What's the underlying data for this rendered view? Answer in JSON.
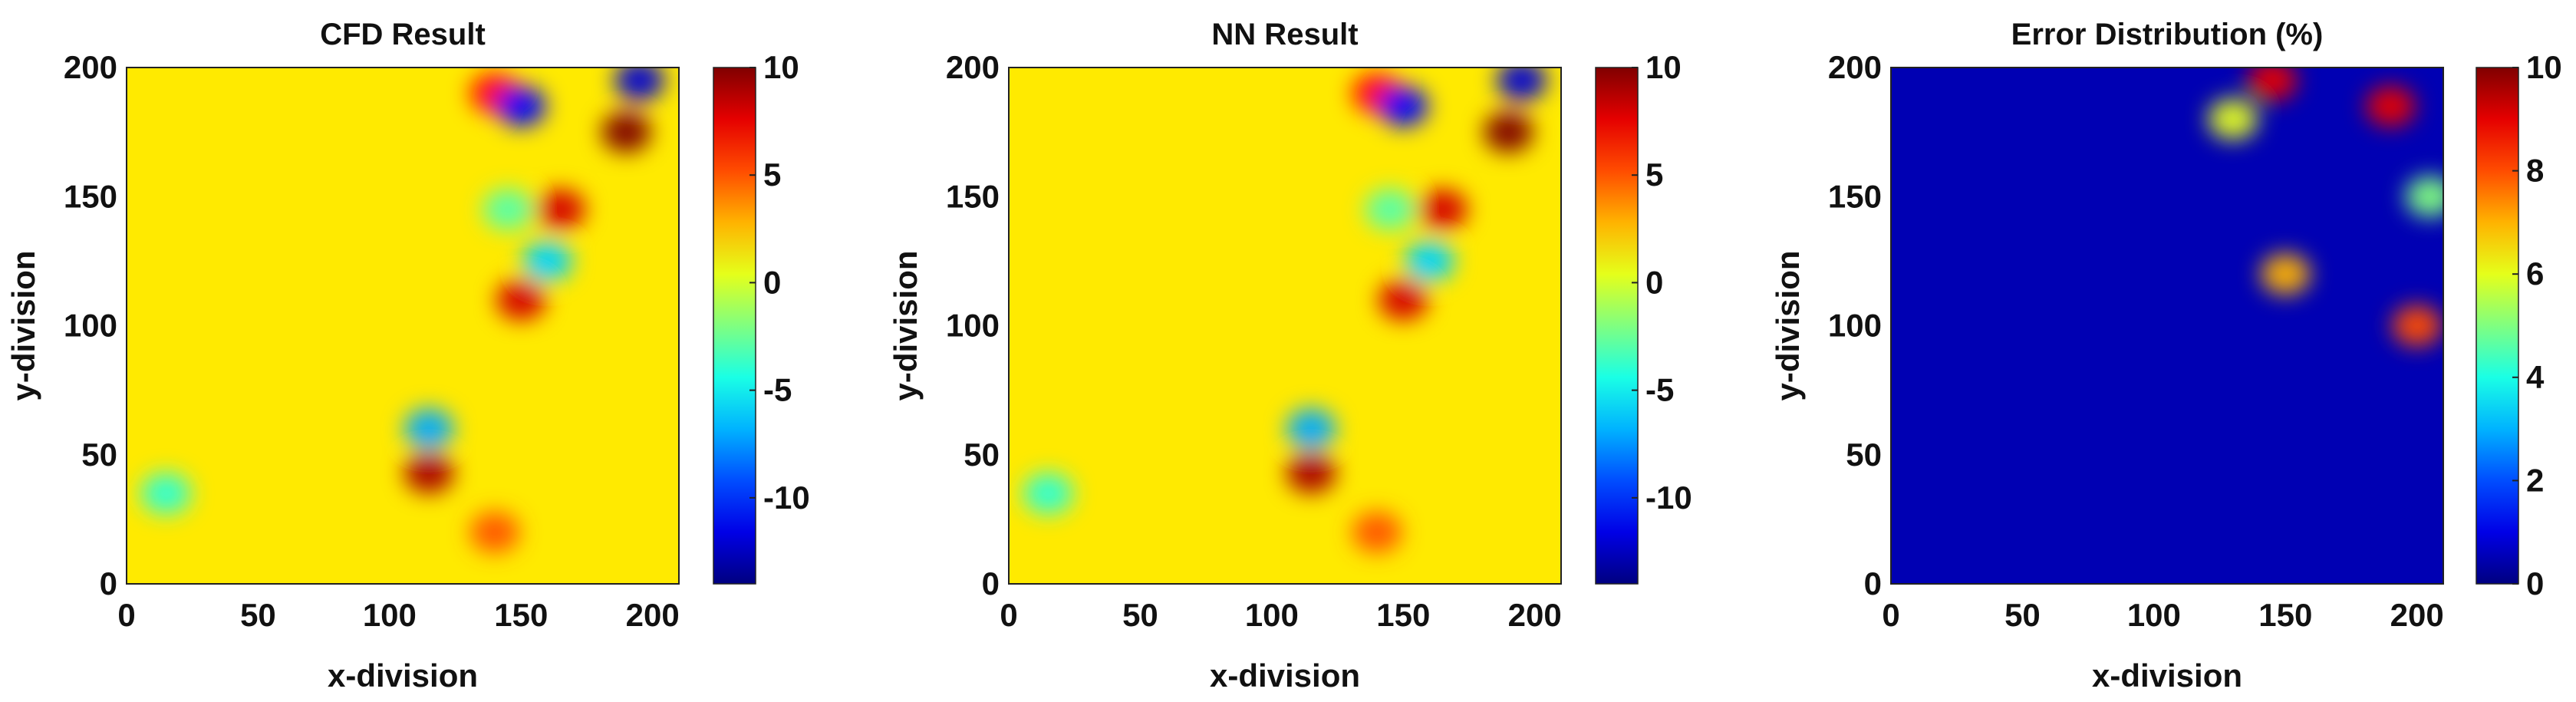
{
  "chart_data": [
    {
      "type": "heatmap",
      "title": "CFD Result",
      "xlabel": "x-division",
      "ylabel": "y-division",
      "xlim": [
        0,
        210
      ],
      "ylim": [
        0,
        200
      ],
      "x_ticks": [
        "0",
        "50",
        "100",
        "150",
        "200"
      ],
      "y_ticks": [
        "0",
        "50",
        "100",
        "150",
        "200"
      ],
      "colorbar": {
        "min": -14,
        "max": 10,
        "ticks": [
          "10",
          "5",
          "0",
          "-5",
          "-10"
        ],
        "colormap": "jet"
      },
      "background_value": 1.5,
      "features": [
        {
          "kind": "high",
          "x": 115,
          "y": 43,
          "value": 9
        },
        {
          "kind": "high",
          "x": 150,
          "y": 110,
          "value": 8
        },
        {
          "kind": "high",
          "x": 165,
          "y": 145,
          "value": 8
        },
        {
          "kind": "high",
          "x": 190,
          "y": 175,
          "value": 10
        },
        {
          "kind": "high",
          "x": 140,
          "y": 190,
          "value": 7
        },
        {
          "kind": "high",
          "x": 140,
          "y": 20,
          "value": 5
        },
        {
          "kind": "low",
          "x": 115,
          "y": 60,
          "value": -7
        },
        {
          "kind": "low",
          "x": 160,
          "y": 125,
          "value": -6
        },
        {
          "kind": "low",
          "x": 150,
          "y": 185,
          "value": -11
        },
        {
          "kind": "low",
          "x": 195,
          "y": 195,
          "value": -12
        },
        {
          "kind": "low",
          "x": 145,
          "y": 145,
          "value": -3
        },
        {
          "kind": "low",
          "x": 15,
          "y": 35,
          "value": -4
        }
      ]
    },
    {
      "type": "heatmap",
      "title": "NN Result",
      "xlabel": "x-division",
      "ylabel": "y-division",
      "xlim": [
        0,
        210
      ],
      "ylim": [
        0,
        200
      ],
      "x_ticks": [
        "0",
        "50",
        "100",
        "150",
        "200"
      ],
      "y_ticks": [
        "0",
        "50",
        "100",
        "150",
        "200"
      ],
      "colorbar": {
        "min": -14,
        "max": 10,
        "ticks": [
          "10",
          "5",
          "0",
          "-5",
          "-10"
        ],
        "colormap": "jet"
      },
      "background_value": 1.5,
      "features": [
        {
          "kind": "high",
          "x": 115,
          "y": 43,
          "value": 9
        },
        {
          "kind": "high",
          "x": 150,
          "y": 110,
          "value": 8
        },
        {
          "kind": "high",
          "x": 165,
          "y": 145,
          "value": 8
        },
        {
          "kind": "high",
          "x": 190,
          "y": 175,
          "value": 10
        },
        {
          "kind": "high",
          "x": 140,
          "y": 190,
          "value": 7
        },
        {
          "kind": "high",
          "x": 140,
          "y": 20,
          "value": 5
        },
        {
          "kind": "low",
          "x": 115,
          "y": 60,
          "value": -7
        },
        {
          "kind": "low",
          "x": 160,
          "y": 125,
          "value": -6
        },
        {
          "kind": "low",
          "x": 150,
          "y": 185,
          "value": -11
        },
        {
          "kind": "low",
          "x": 195,
          "y": 195,
          "value": -12
        },
        {
          "kind": "low",
          "x": 145,
          "y": 145,
          "value": -3
        },
        {
          "kind": "low",
          "x": 15,
          "y": 35,
          "value": -4
        }
      ]
    },
    {
      "type": "heatmap",
      "title": "Error Distribution (%)",
      "xlabel": "x-division",
      "ylabel": "y-division",
      "xlim": [
        0,
        210
      ],
      "ylim": [
        0,
        200
      ],
      "x_ticks": [
        "0",
        "50",
        "100",
        "150",
        "200"
      ],
      "y_ticks": [
        "0",
        "50",
        "100",
        "150",
        "200"
      ],
      "colorbar": {
        "min": 0,
        "max": 10,
        "ticks": [
          "10",
          "8",
          "6",
          "4",
          "2",
          "0"
        ],
        "colormap": "jet"
      },
      "background_value": 0.5,
      "features": [
        {
          "kind": "high",
          "x": 145,
          "y": 195,
          "value": 9
        },
        {
          "kind": "high",
          "x": 190,
          "y": 185,
          "value": 9
        },
        {
          "kind": "high",
          "x": 200,
          "y": 100,
          "value": 8
        },
        {
          "kind": "high",
          "x": 150,
          "y": 120,
          "value": 7
        },
        {
          "kind": "high",
          "x": 205,
          "y": 150,
          "value": 5
        },
        {
          "kind": "high",
          "x": 130,
          "y": 180,
          "value": 6
        }
      ]
    }
  ]
}
